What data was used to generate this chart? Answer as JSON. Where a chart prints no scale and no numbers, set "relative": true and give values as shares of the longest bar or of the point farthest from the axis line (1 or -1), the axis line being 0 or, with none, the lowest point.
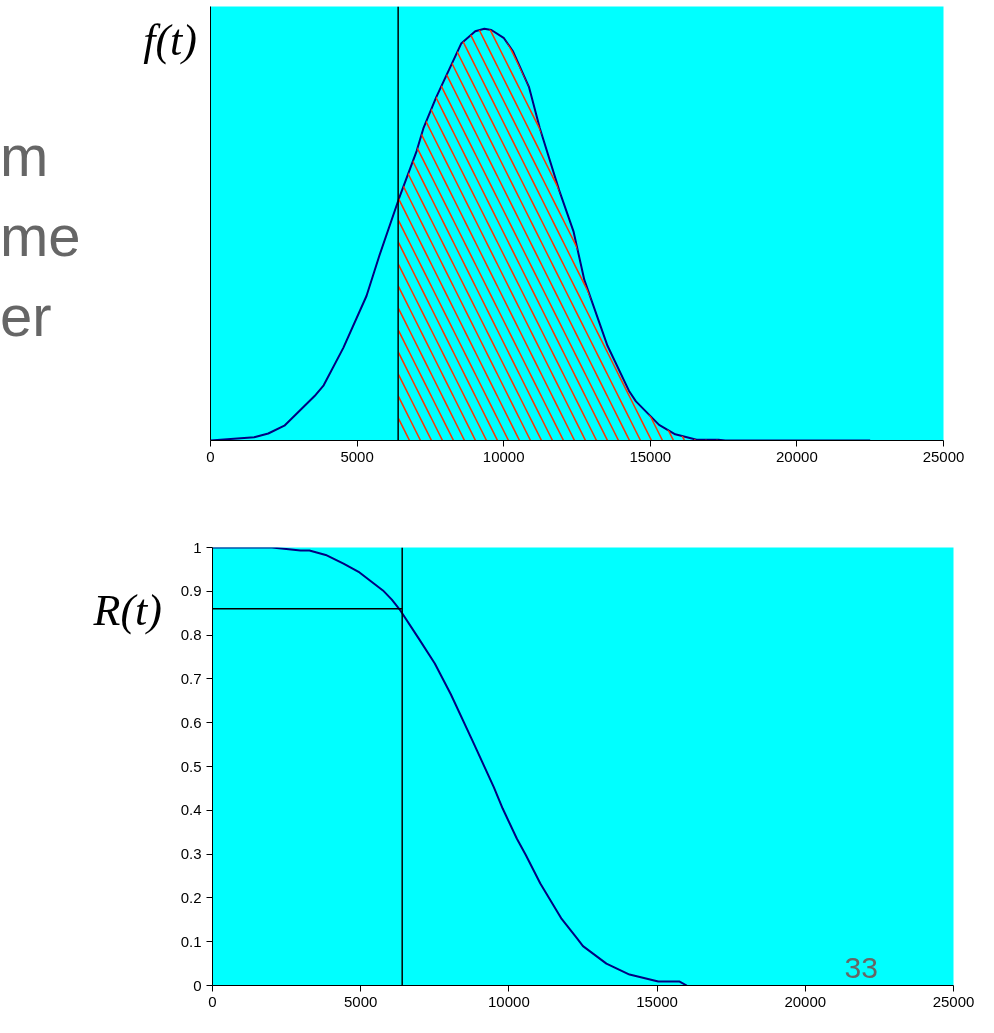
{
  "chart_data": [
    {
      "type": "line",
      "ylabel": "f(t)",
      "relative": true,
      "xlim": [
        0,
        25000
      ],
      "xticks": [
        0,
        5000,
        10000,
        15000,
        20000,
        25000
      ],
      "annotations": [
        "m",
        "me",
        "er"
      ],
      "ref_lines": [
        {
          "axis": "x",
          "value": 6400,
          "color": "#000000"
        }
      ],
      "series": [
        {
          "color": "#000080",
          "x": [
            0,
            1490,
            1970,
            2520,
            3550,
            3860,
            4530,
            5320,
            5750,
            6420,
            7030,
            7270,
            7700,
            8550,
            9030,
            9340,
            9580,
            10010,
            10310,
            10860,
            11230,
            11890,
            12380,
            12750,
            13540,
            14270,
            14510,
            15300,
            15850,
            16580,
            17320,
            17560,
            22500
          ],
          "values": [
            0,
            0.008,
            0.017,
            0.036,
            0.108,
            0.134,
            0.225,
            0.351,
            0.447,
            0.586,
            0.703,
            0.76,
            0.834,
            0.964,
            0.994,
            1,
            0.997,
            0.977,
            0.946,
            0.859,
            0.759,
            0.608,
            0.508,
            0.39,
            0.23,
            0.121,
            0.095,
            0.038,
            0.015,
            0.002,
            0.002,
            0,
            0
          ]
        },
        {
          "type": "area",
          "color": "#ff3300",
          "x": [
            6420,
            7030,
            7270,
            7700,
            8550,
            9030,
            9340,
            9580,
            10010,
            10310,
            10860,
            11230,
            11890,
            12380,
            12750,
            13540,
            14270,
            14510,
            15300,
            15850,
            16580,
            17320,
            17560
          ],
          "values": [
            0.586,
            0.703,
            0.76,
            0.834,
            0.964,
            0.994,
            1,
            0.997,
            0.977,
            0.946,
            0.859,
            0.759,
            0.608,
            0.508,
            0.39,
            0.23,
            0.121,
            0.095,
            0.038,
            0.015,
            0.002,
            0.002,
            0
          ]
        }
      ]
    },
    {
      "type": "line",
      "ylabel": "R(t)",
      "xlim": [
        0,
        25000
      ],
      "xticks": [
        0,
        5000,
        10000,
        15000,
        20000,
        25000
      ],
      "ylim": [
        0,
        1
      ],
      "yticks": [
        0,
        0.1,
        0.2,
        0.3,
        0.4,
        0.5,
        0.6,
        0.7,
        0.8,
        0.9,
        1
      ],
      "annotations": [
        "33"
      ],
      "ref_lines": [
        {
          "axis": "x",
          "value": 6400,
          "color": "#000000"
        },
        {
          "axis": "y",
          "value": 0.86,
          "color": "#000000"
        }
      ],
      "series": [
        {
          "color": "#000080",
          "x": [
            0,
            2010,
            2970,
            3270,
            3820,
            4420,
            4960,
            5750,
            6050,
            6310,
            6960,
            7500,
            8040,
            8770,
            9490,
            9790,
            10270,
            10570,
            11060,
            11780,
            12260,
            12500,
            13290,
            14070,
            15040,
            15760,
            16000
          ],
          "values": [
            1,
            1,
            0.993,
            0.993,
            0.983,
            0.963,
            0.943,
            0.902,
            0.881,
            0.859,
            0.792,
            0.735,
            0.665,
            0.559,
            0.453,
            0.404,
            0.335,
            0.298,
            0.233,
            0.152,
            0.111,
            0.09,
            0.05,
            0.025,
            0.009,
            0.009,
            0
          ]
        }
      ]
    }
  ]
}
